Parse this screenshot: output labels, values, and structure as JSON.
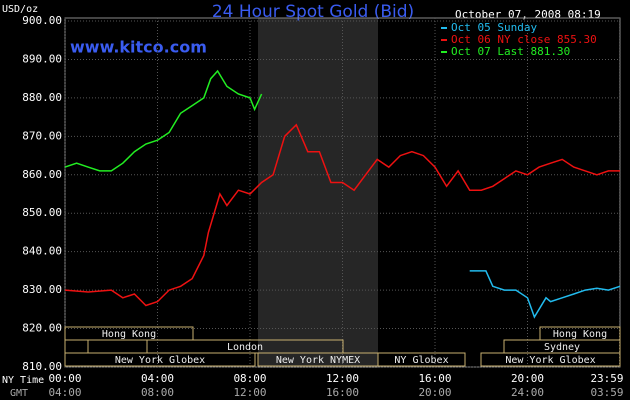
{
  "chart_data": {
    "type": "line",
    "title": "24 Hour Spot Gold (Bid)",
    "timestamp": "October 07, 2008 08:19",
    "site": "www.kitco.com",
    "y_label": "USD/oz",
    "x_row_labels": [
      "NY Time",
      "GMT"
    ],
    "xlim": [
      0,
      24
    ],
    "xticks": [
      {
        "value": 0,
        "label": "00:00"
      },
      {
        "value": 4,
        "label": "04:00"
      },
      {
        "value": 8,
        "label": "08:00"
      },
      {
        "value": 12,
        "label": "12:00"
      },
      {
        "value": 16,
        "label": "16:00"
      },
      {
        "value": 20,
        "label": "20:00"
      },
      {
        "value": 23.98,
        "label": "23:59"
      }
    ],
    "gmt_labels": [
      "04:00",
      "08:00",
      "12:00",
      "16:00",
      "20:00",
      "24:00",
      "03:59"
    ],
    "ylim": [
      810,
      900
    ],
    "yticks": [
      {
        "value": 810,
        "label": "810.00"
      },
      {
        "value": 820,
        "label": "820.00"
      },
      {
        "value": 830,
        "label": "830.00"
      },
      {
        "value": 840,
        "label": "840.00"
      },
      {
        "value": 850,
        "label": "850.00"
      },
      {
        "value": 860,
        "label": "860.00"
      },
      {
        "value": 870,
        "label": "870.00"
      },
      {
        "value": 880,
        "label": "880.00"
      },
      {
        "value": 890,
        "label": "890.00"
      },
      {
        "value": 900,
        "label": "900.00"
      }
    ],
    "grid": true,
    "sessions": [
      "Hong Kong",
      "London",
      "New York Globex",
      "New York NYMEX",
      "NY Globex",
      "Hong Kong",
      "Sydney",
      "New York Globex"
    ],
    "series": [
      {
        "name": "Oct 05 Sunday",
        "color": "#22bbee",
        "x": [
          17.5,
          18.2,
          18.5,
          19,
          19.5,
          20,
          20.3,
          20.8,
          21,
          21.5,
          22,
          22.5,
          23,
          23.5,
          24
        ],
        "values": [
          835,
          835,
          831,
          830,
          830,
          828,
          823,
          828,
          827,
          828,
          829,
          830,
          830.5,
          830,
          831
        ]
      },
      {
        "name": "Oct 06 NY close 855.30",
        "color": "#ee1111",
        "x": [
          0,
          1,
          2,
          2.5,
          3,
          3.5,
          4,
          4.5,
          5,
          5.5,
          6,
          6.2,
          6.7,
          7,
          7.5,
          8,
          8.5,
          9,
          9.5,
          10,
          10.5,
          11,
          11.5,
          12,
          12.5,
          13,
          13.5,
          14,
          14.5,
          15,
          15.5,
          16,
          16.5,
          17,
          17.5,
          18,
          18.5,
          19,
          19.5,
          20,
          20.5,
          21,
          21.5,
          22,
          22.5,
          23,
          23.5,
          24
        ],
        "values": [
          830,
          829.5,
          830,
          828,
          829,
          826,
          827,
          830,
          831,
          833,
          839,
          845,
          855,
          852,
          856,
          855,
          858,
          860,
          870,
          873,
          866,
          866,
          858,
          858,
          856,
          860,
          864,
          862,
          865,
          866,
          865,
          862,
          857,
          861,
          856,
          856,
          857,
          859,
          861,
          860,
          862,
          863,
          864,
          862,
          861,
          860,
          861,
          861
        ]
      },
      {
        "name": "Oct 07 Last 881.30",
        "color": "#22ee22",
        "x": [
          0,
          0.5,
          1,
          1.5,
          2,
          2.5,
          3,
          3.5,
          4,
          4.5,
          5,
          5.5,
          6,
          6.3,
          6.6,
          7,
          7.5,
          8,
          8.2,
          8.5
        ],
        "values": [
          862,
          863,
          862,
          861,
          861,
          863,
          866,
          868,
          869,
          871,
          876,
          878,
          880,
          885,
          887,
          883,
          881,
          880,
          877,
          881
        ]
      }
    ]
  }
}
